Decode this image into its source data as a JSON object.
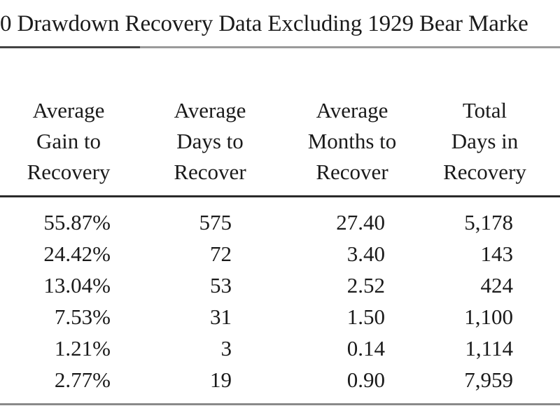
{
  "title": "0 Drawdown Recovery Data Excluding 1929 Bear Marke",
  "columns": [
    {
      "line1": "Average",
      "line2": "Gain to",
      "line3": "Recovery"
    },
    {
      "line1": "Average",
      "line2": "Days to",
      "line3": "Recover"
    },
    {
      "line1": "Average",
      "line2": "Months to",
      "line3": "Recover"
    },
    {
      "line1": "Total",
      "line2": "Days in",
      "line3": "Recovery"
    }
  ],
  "rows": [
    [
      "55.87%",
      "575",
      "27.40",
      "5,178"
    ],
    [
      "24.42%",
      "72",
      "3.40",
      "143"
    ],
    [
      "13.04%",
      "53",
      "2.52",
      "424"
    ],
    [
      "7.53%",
      "31",
      "1.50",
      "1,100"
    ],
    [
      "1.21%",
      "3",
      "0.14",
      "1,114"
    ],
    [
      "2.77%",
      "19",
      "0.90",
      "7,959"
    ]
  ]
}
